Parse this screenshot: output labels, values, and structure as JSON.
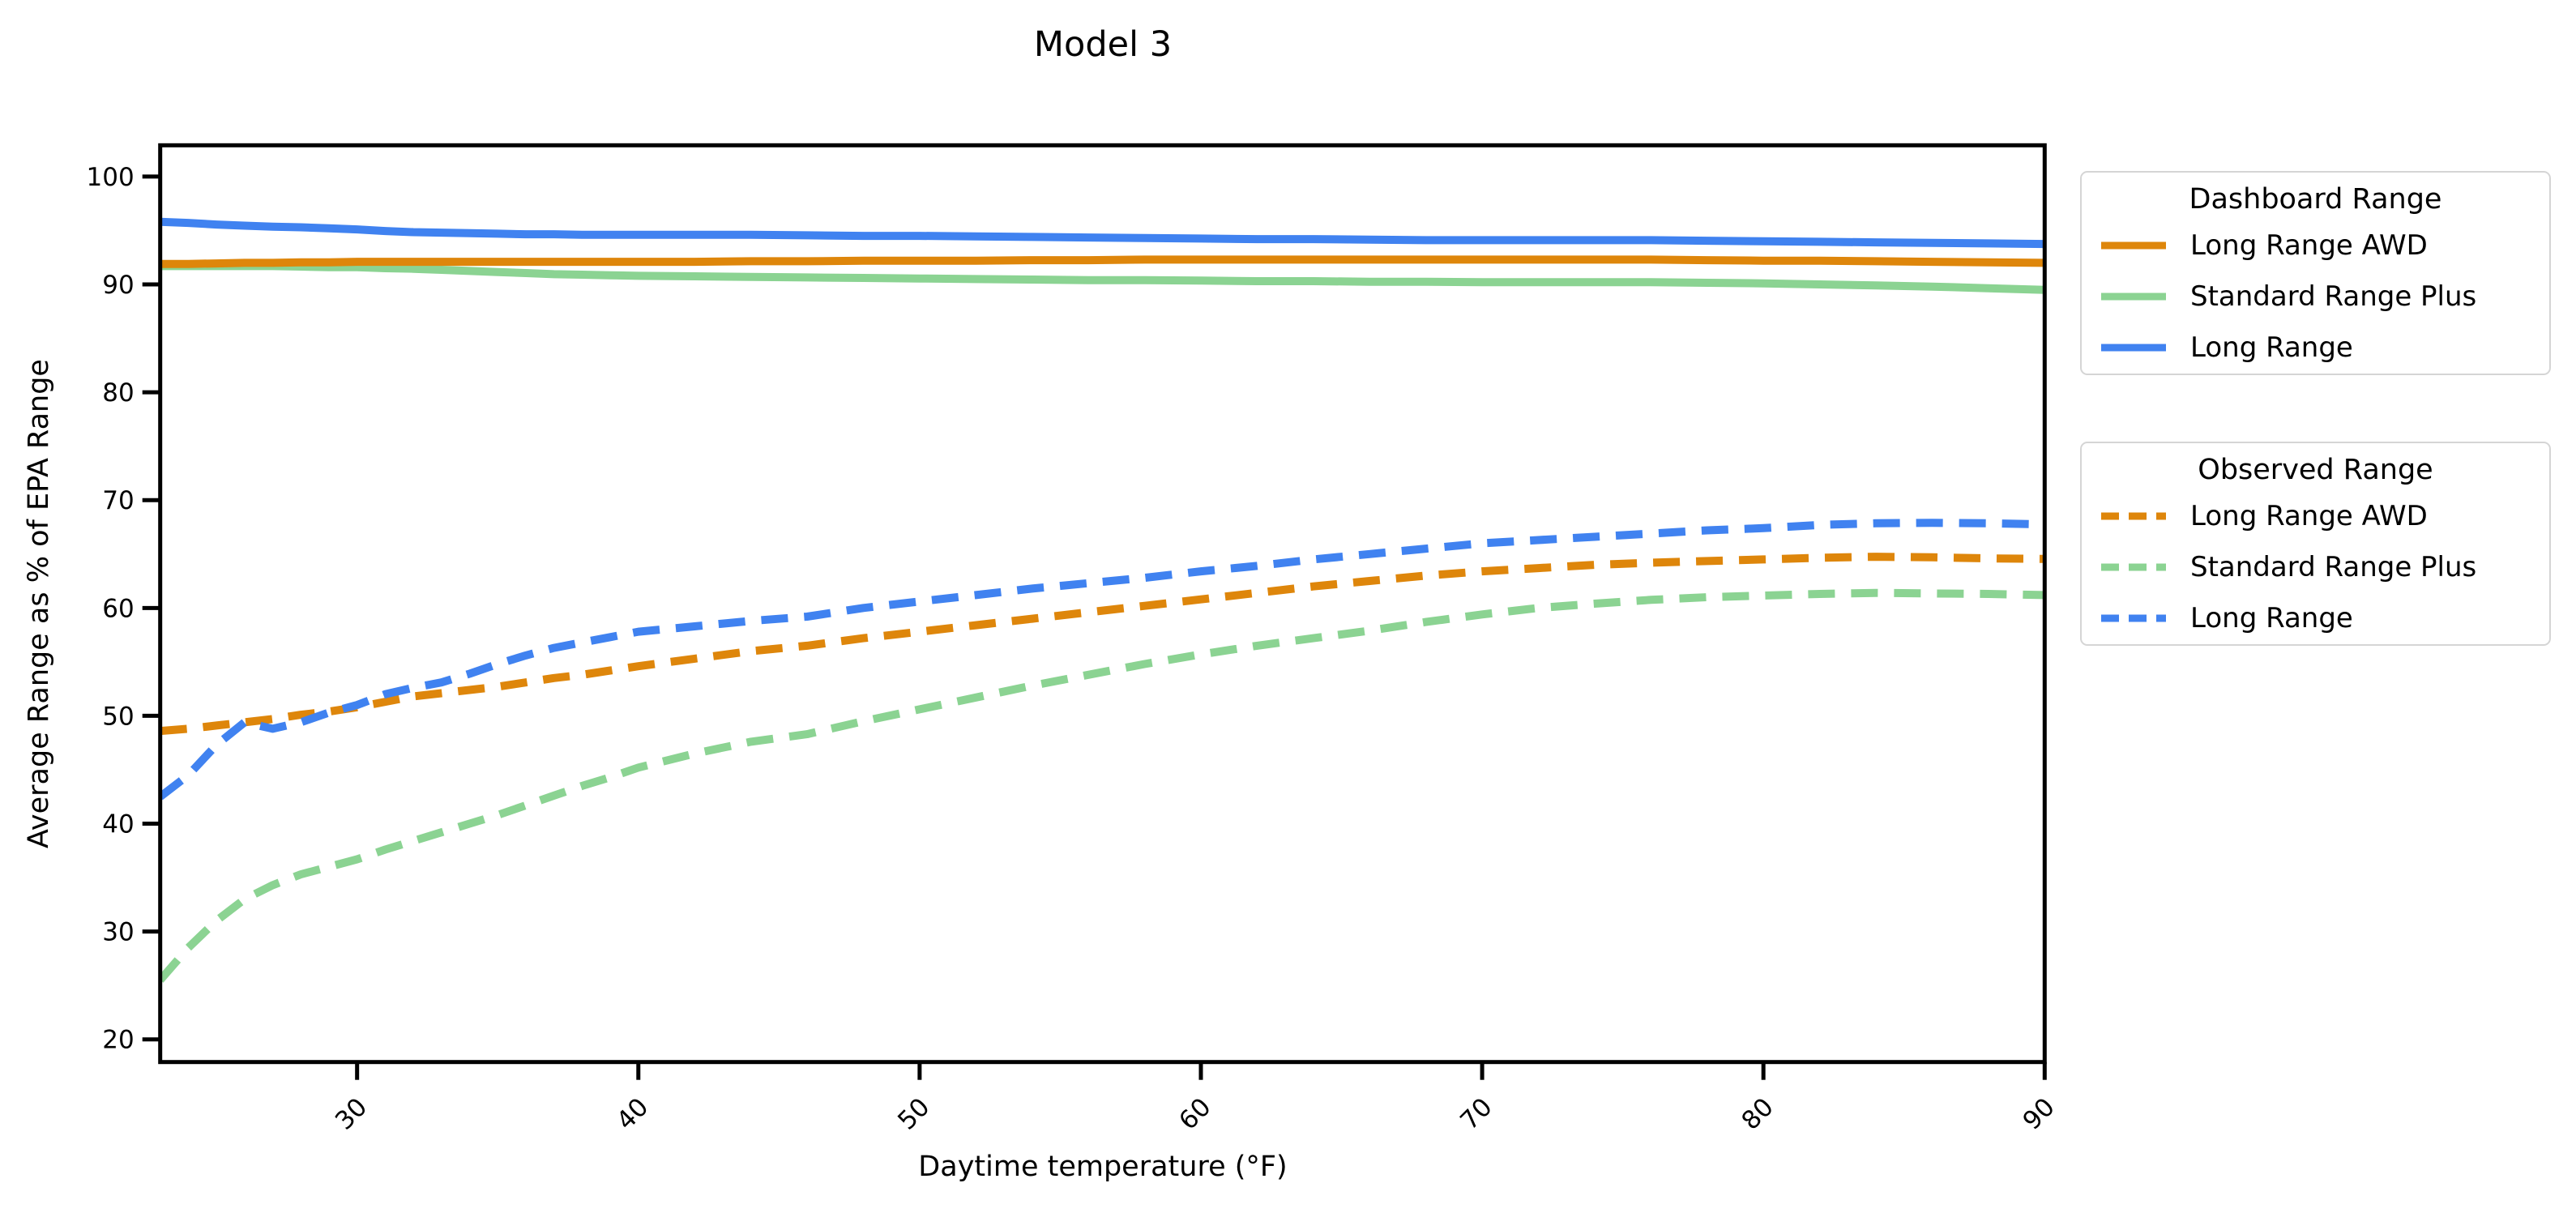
{
  "title": "Model 3",
  "axes": {
    "xlabel": "Daytime temperature (°F)",
    "ylabel": "Average Range as % of EPA Range"
  },
  "colors": {
    "orange": "#de860b",
    "green": "#8bd392",
    "blue": "#4082f0",
    "axis": "#000000",
    "legend_border": "#d5d5d5"
  },
  "legends": [
    {
      "title": "Dashboard Range",
      "style": "solid",
      "items": [
        {
          "label": "Long Range AWD",
          "color": "orange"
        },
        {
          "label": "Standard Range Plus",
          "color": "green"
        },
        {
          "label": "Long Range",
          "color": "blue"
        }
      ]
    },
    {
      "title": "Observed Range",
      "style": "dashed",
      "items": [
        {
          "label": "Long Range AWD",
          "color": "orange"
        },
        {
          "label": "Standard Range Plus",
          "color": "green"
        },
        {
          "label": "Long Range",
          "color": "blue"
        }
      ]
    }
  ],
  "chart_data": {
    "type": "line",
    "title": "Model 3",
    "xlabel": "Daytime temperature (°F)",
    "ylabel": "Average Range as % of EPA Range",
    "xlim": [
      23,
      90
    ],
    "ylim": [
      17.9,
      102.9
    ],
    "x_ticks": [
      30,
      40,
      50,
      60,
      70,
      80,
      90
    ],
    "y_ticks": [
      20,
      30,
      40,
      50,
      60,
      70,
      80,
      90,
      100
    ],
    "grid": false,
    "legend_position": "outside-right",
    "x": [
      23,
      24,
      25,
      26,
      27,
      28,
      29,
      30,
      31,
      32,
      33,
      34,
      35,
      36,
      37,
      38,
      39,
      40,
      42,
      44,
      46,
      48,
      50,
      52,
      54,
      56,
      58,
      60,
      62,
      64,
      66,
      68,
      70,
      72,
      74,
      76,
      78,
      80,
      82,
      84,
      86,
      88,
      90
    ],
    "series": [
      {
        "name": "Standard Range Plus",
        "group": "Dashboard Range",
        "color": "green",
        "dash": false,
        "values": [
          91.7,
          91.7,
          91.7,
          91.7,
          91.7,
          91.65,
          91.6,
          91.6,
          91.5,
          91.45,
          91.35,
          91.25,
          91.15,
          91.05,
          90.95,
          90.9,
          90.85,
          90.8,
          90.75,
          90.7,
          90.65,
          90.6,
          90.55,
          90.5,
          90.45,
          90.4,
          90.4,
          90.35,
          90.3,
          90.3,
          90.25,
          90.25,
          90.2,
          90.2,
          90.2,
          90.2,
          90.15,
          90.1,
          90.0,
          89.9,
          89.8,
          89.65,
          89.5
        ]
      },
      {
        "name": "Long Range AWD",
        "group": "Dashboard Range",
        "color": "orange",
        "dash": false,
        "values": [
          91.9,
          91.9,
          91.95,
          92.0,
          92.0,
          92.05,
          92.05,
          92.1,
          92.1,
          92.1,
          92.1,
          92.1,
          92.1,
          92.1,
          92.1,
          92.1,
          92.1,
          92.1,
          92.1,
          92.15,
          92.15,
          92.2,
          92.2,
          92.2,
          92.25,
          92.25,
          92.3,
          92.3,
          92.3,
          92.3,
          92.3,
          92.3,
          92.3,
          92.3,
          92.3,
          92.3,
          92.25,
          92.2,
          92.2,
          92.15,
          92.1,
          92.05,
          92.0
        ]
      },
      {
        "name": "Long Range",
        "group": "Dashboard Range",
        "color": "blue",
        "dash": false,
        "values": [
          95.8,
          95.7,
          95.55,
          95.45,
          95.35,
          95.3,
          95.2,
          95.1,
          94.95,
          94.85,
          94.8,
          94.75,
          94.7,
          94.65,
          94.65,
          94.6,
          94.6,
          94.6,
          94.6,
          94.6,
          94.55,
          94.5,
          94.5,
          94.45,
          94.4,
          94.35,
          94.3,
          94.25,
          94.2,
          94.2,
          94.15,
          94.1,
          94.1,
          94.1,
          94.1,
          94.1,
          94.05,
          94.0,
          93.95,
          93.9,
          93.85,
          93.8,
          93.75
        ]
      },
      {
        "name": "Standard Range Plus",
        "group": "Observed Range",
        "color": "green",
        "dash": true,
        "values": [
          25.5,
          28.5,
          31.0,
          33.0,
          34.3,
          35.3,
          36.0,
          36.7,
          37.6,
          38.4,
          39.2,
          40.0,
          40.8,
          41.7,
          42.6,
          43.5,
          44.3,
          45.2,
          46.5,
          47.6,
          48.3,
          49.5,
          50.6,
          51.7,
          52.8,
          53.8,
          54.8,
          55.7,
          56.5,
          57.2,
          57.9,
          58.7,
          59.4,
          60.0,
          60.4,
          60.75,
          61.0,
          61.15,
          61.3,
          61.4,
          61.35,
          61.3,
          61.2
        ]
      },
      {
        "name": "Long Range AWD",
        "group": "Observed Range",
        "color": "orange",
        "dash": true,
        "values": [
          48.6,
          48.8,
          49.1,
          49.4,
          49.7,
          50.1,
          50.4,
          50.8,
          51.3,
          51.8,
          52.1,
          52.4,
          52.7,
          53.1,
          53.5,
          53.8,
          54.2,
          54.6,
          55.3,
          56.0,
          56.5,
          57.2,
          57.8,
          58.4,
          59.0,
          59.6,
          60.2,
          60.8,
          61.4,
          62.0,
          62.5,
          63.0,
          63.4,
          63.7,
          64.0,
          64.2,
          64.35,
          64.5,
          64.65,
          64.75,
          64.7,
          64.6,
          64.55
        ]
      },
      {
        "name": "Long Range",
        "group": "Observed Range",
        "color": "blue",
        "dash": true,
        "values": [
          42.5,
          44.5,
          47.3,
          49.4,
          48.8,
          49.4,
          50.3,
          51.0,
          52.0,
          52.6,
          53.1,
          53.9,
          54.8,
          55.6,
          56.3,
          56.8,
          57.3,
          57.8,
          58.3,
          58.8,
          59.2,
          60.0,
          60.6,
          61.2,
          61.8,
          62.3,
          62.8,
          63.4,
          63.9,
          64.5,
          65.0,
          65.5,
          66.0,
          66.3,
          66.6,
          66.9,
          67.2,
          67.4,
          67.7,
          67.85,
          67.9,
          67.85,
          67.75
        ]
      }
    ]
  }
}
